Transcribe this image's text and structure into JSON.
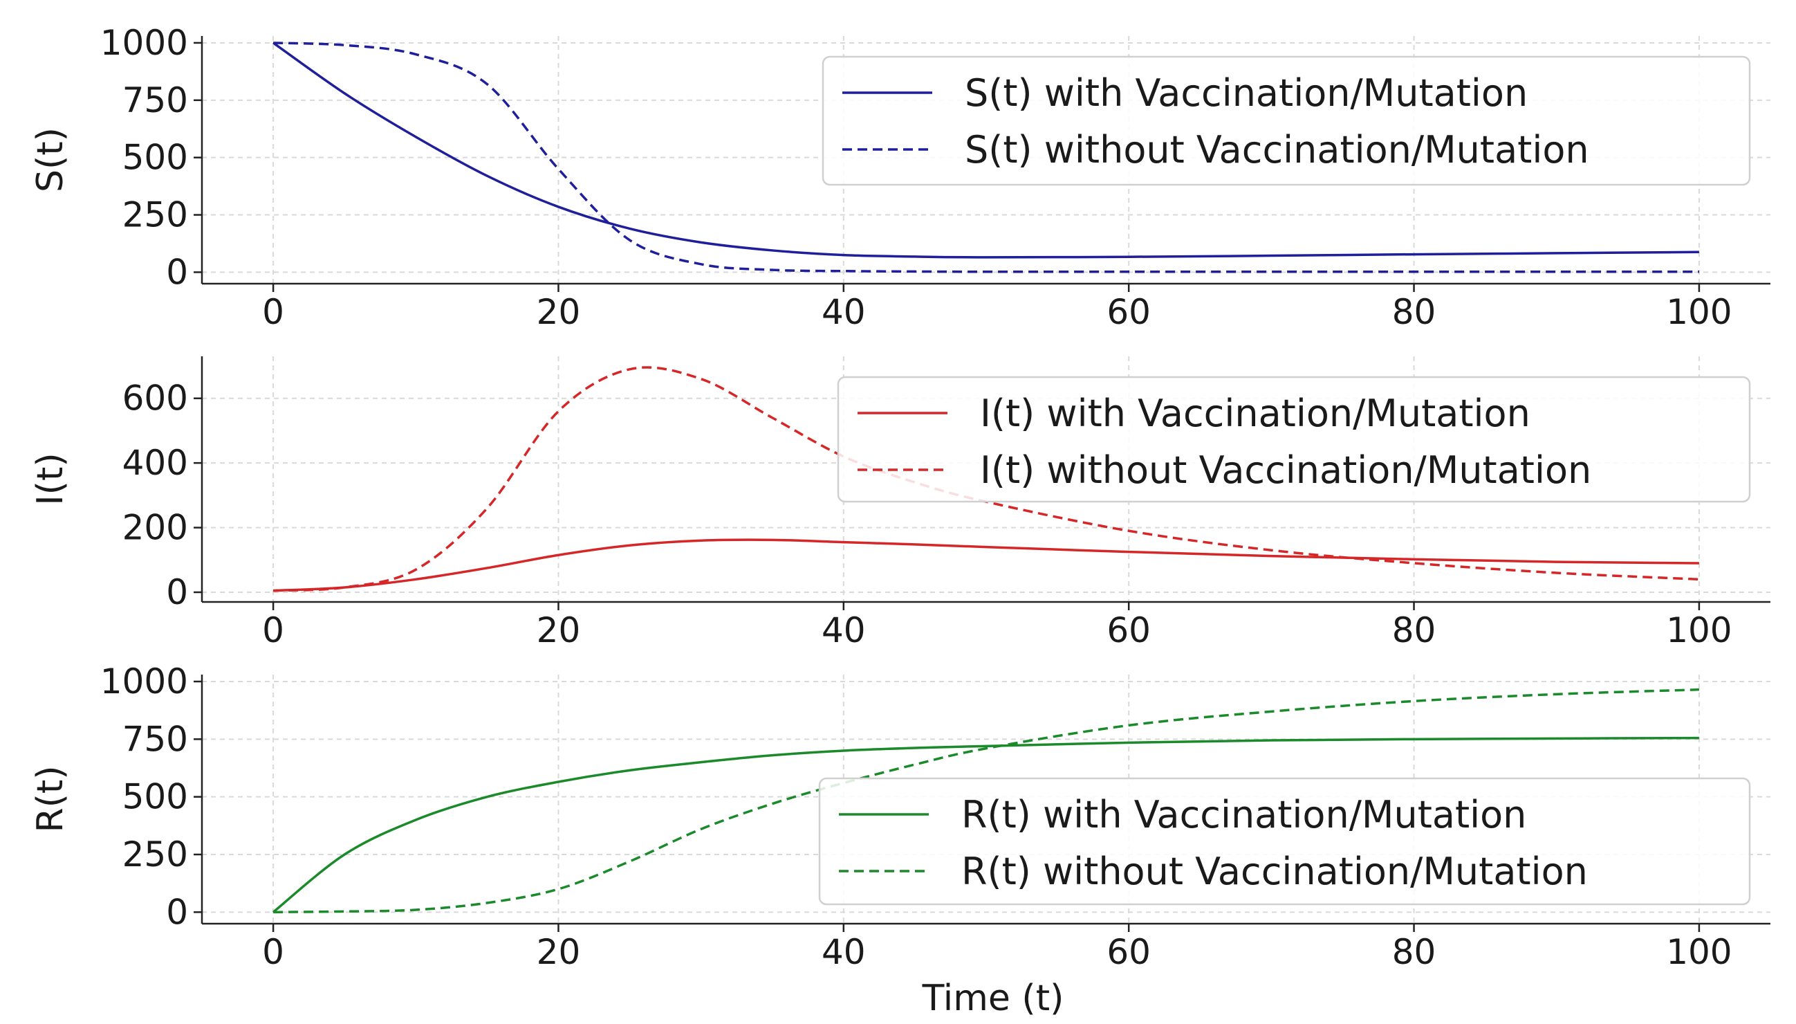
{
  "chart_data": [
    {
      "type": "line",
      "ylabel": "S(t)",
      "xlabel": "",
      "xlim": [
        -5,
        105
      ],
      "ylim": [
        -50,
        1030
      ],
      "x_ticks": [
        0,
        20,
        40,
        60,
        80,
        100
      ],
      "x_tick_labels": [
        "0",
        "20",
        "40",
        "60",
        "80",
        "100"
      ],
      "y_ticks": [
        0,
        250,
        500,
        750,
        1000
      ],
      "y_tick_labels": [
        "0",
        "250",
        "500",
        "750",
        "1000"
      ],
      "grid": true,
      "legend_position": "top-right",
      "x": [
        0,
        5,
        10,
        15,
        20,
        25,
        30,
        35,
        40,
        45,
        50,
        60,
        70,
        80,
        90,
        100
      ],
      "series": [
        {
          "name": "S(t) with Vaccination/Mutation",
          "color": "#1f1f9c",
          "style": "solid",
          "values": [
            1000,
            780,
            590,
            420,
            285,
            190,
            130,
            95,
            75,
            68,
            65,
            67,
            72,
            78,
            83,
            88
          ]
        },
        {
          "name": "S(t) without Vaccination/Mutation",
          "color": "#1f1f9c",
          "style": "dashed",
          "values": [
            1000,
            990,
            950,
            820,
            450,
            140,
            35,
            10,
            5,
            3,
            2,
            2,
            2,
            2,
            2,
            2
          ]
        }
      ]
    },
    {
      "type": "line",
      "ylabel": "I(t)",
      "xlabel": "",
      "xlim": [
        -5,
        105
      ],
      "ylim": [
        -30,
        730
      ],
      "x_ticks": [
        0,
        20,
        40,
        60,
        80,
        100
      ],
      "x_tick_labels": [
        "0",
        "20",
        "40",
        "60",
        "80",
        "100"
      ],
      "y_ticks": [
        0,
        200,
        400,
        600
      ],
      "y_tick_labels": [
        "0",
        "200",
        "400",
        "600"
      ],
      "grid": true,
      "legend_position": "top-right",
      "x": [
        0,
        5,
        10,
        15,
        20,
        25,
        30,
        35,
        40,
        45,
        50,
        60,
        70,
        80,
        90,
        100
      ],
      "series": [
        {
          "name": "I(t) with Vaccination/Mutation",
          "color": "#d62728",
          "style": "solid",
          "values": [
            5,
            15,
            40,
            75,
            115,
            145,
            160,
            162,
            155,
            148,
            140,
            125,
            112,
            102,
            94,
            90
          ]
        },
        {
          "name": "I(t) without Vaccination/Mutation",
          "color": "#d62728",
          "style": "dashed",
          "values": [
            5,
            15,
            70,
            260,
            560,
            690,
            660,
            540,
            420,
            340,
            280,
            190,
            130,
            90,
            60,
            40
          ]
        }
      ]
    },
    {
      "type": "line",
      "ylabel": "R(t)",
      "xlabel": "Time (t)",
      "xlim": [
        -5,
        105
      ],
      "ylim": [
        -50,
        1030
      ],
      "x_ticks": [
        0,
        20,
        40,
        60,
        80,
        100
      ],
      "x_tick_labels": [
        "0",
        "20",
        "40",
        "60",
        "80",
        "100"
      ],
      "y_ticks": [
        0,
        250,
        500,
        750,
        1000
      ],
      "y_tick_labels": [
        "0",
        "250",
        "500",
        "750",
        "1000"
      ],
      "grid": true,
      "legend_position": "center-right",
      "x": [
        0,
        5,
        10,
        15,
        20,
        25,
        30,
        35,
        40,
        45,
        50,
        60,
        70,
        80,
        90,
        100
      ],
      "series": [
        {
          "name": "R(t) with Vaccination/Mutation",
          "color": "#1a8a2a",
          "style": "solid",
          "values": [
            0,
            250,
            400,
            500,
            565,
            615,
            650,
            680,
            700,
            712,
            720,
            735,
            745,
            750,
            753,
            755
          ]
        },
        {
          "name": "R(t) without Vaccination/Mutation",
          "color": "#1a8a2a",
          "style": "dashed",
          "values": [
            0,
            3,
            10,
            40,
            100,
            220,
            360,
            470,
            560,
            640,
            710,
            810,
            870,
            915,
            945,
            965
          ]
        }
      ]
    }
  ]
}
